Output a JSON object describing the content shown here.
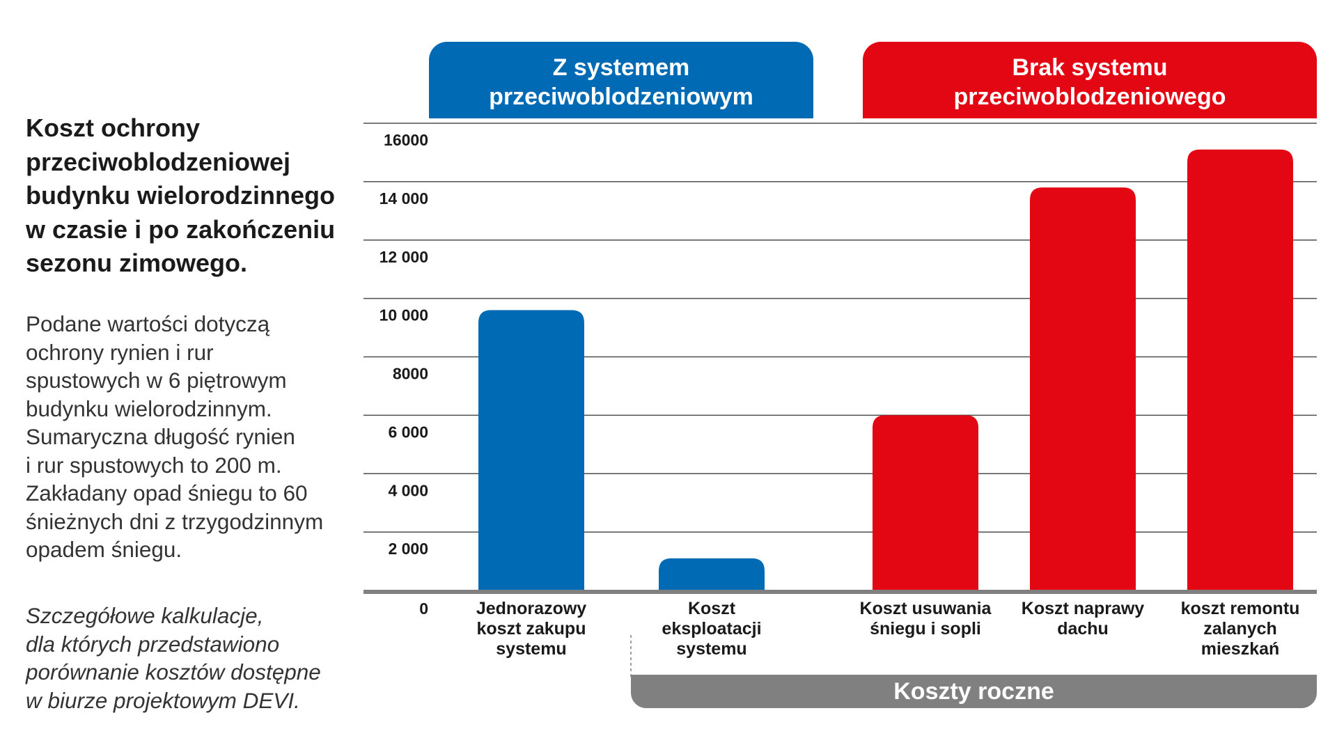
{
  "left_panel": {
    "title_lines": [
      "Koszt ochrony",
      "przeciwoblodzeniowej",
      "budynku wielorodzinnego",
      "w czasie i po zakończeniu",
      "sezonu zimowego."
    ],
    "description_lines": [
      "Podane wartości dotyczą",
      "ochrony rynien i rur",
      "spustowych w 6 piętrowym",
      "budynku wielorodzinnym.",
      "Sumaryczna długość rynien",
      "i rur spustowych to 200 m.",
      "Zakładany opad śniegu to 60",
      "śnieżnych dni z trzygodzinnym",
      "opadem śniegu."
    ],
    "note_lines": [
      "Szczegółowe kalkulacje,",
      "dla których przedstawiono",
      "porównanie kosztów dostępne",
      "w biurze projektowym DEVI."
    ]
  },
  "groups": {
    "with_system": {
      "label_lines": [
        "Z systemem",
        "przeciwoblodzeniowym"
      ],
      "color": "#006bb4"
    },
    "without_system": {
      "label_lines": [
        "Brak systemu",
        "przeciwoblodzeniowego"
      ],
      "color": "#e30613"
    },
    "annual": {
      "label": "Koszty roczne",
      "color": "#808080"
    }
  },
  "chart_data": {
    "type": "bar",
    "title": "",
    "xlabel": "",
    "ylabel": "",
    "ylim": [
      0,
      16000
    ],
    "grid": true,
    "y_ticks": [
      {
        "value": 0,
        "label": "0"
      },
      {
        "value": 2000,
        "label": "2 000"
      },
      {
        "value": 4000,
        "label": "4 000"
      },
      {
        "value": 6000,
        "label": "6 000"
      },
      {
        "value": 8000,
        "label": "8000"
      },
      {
        "value": 10000,
        "label": "10 000"
      },
      {
        "value": 12000,
        "label": "12 000"
      },
      {
        "value": 14000,
        "label": "14 000"
      },
      {
        "value": 16000,
        "label": "16000"
      }
    ],
    "bars": [
      {
        "label_lines": [
          "Jednorazowy",
          "koszt zakupu",
          "systemu"
        ],
        "value": 9600,
        "color": "#006bb4"
      },
      {
        "label_lines": [
          "Koszt",
          "eksploatacji",
          "systemu"
        ],
        "value": 1100,
        "color": "#006bb4"
      },
      {
        "label_lines": [
          "Koszt usuwania",
          "śniegu i sopli"
        ],
        "value": 6000,
        "color": "#e30613"
      },
      {
        "label_lines": [
          "Koszt naprawy",
          "dachu"
        ],
        "value": 13800,
        "color": "#e30613"
      },
      {
        "label_lines": [
          "koszt remontu",
          "zalanych",
          "mieszkań"
        ],
        "value": 15100,
        "color": "#e30613"
      }
    ]
  }
}
